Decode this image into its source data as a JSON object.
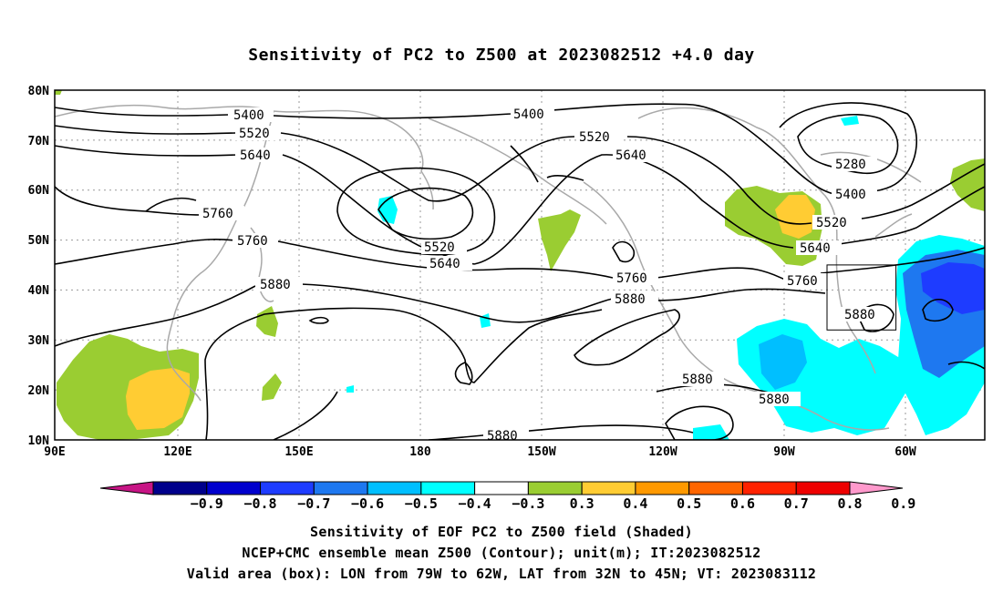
{
  "title": "Sensitivity of PC2 to Z500 at 2023082512 +4.0 day",
  "lat_labels": [
    "80N",
    "70N",
    "60N",
    "50N",
    "40N",
    "30N",
    "20N",
    "10N"
  ],
  "lon_labels": [
    "90E",
    "120E",
    "150E",
    "180",
    "150W",
    "120W",
    "90W",
    "60W"
  ],
  "contour_labels": {
    "c5400_a": "5400",
    "c5520_a": "5520",
    "c5640_a": "5640",
    "c5760_a": "5760",
    "c5760_b": "5760",
    "c5880_a": "5880",
    "c5400_b": "5400",
    "c5520_b": "5520",
    "c5640_b": "5640",
    "c5520_c": "5520",
    "c5640_c": "5640",
    "c5760_c": "5760",
    "c5880_b": "5880",
    "c5280": "5280",
    "c5400_c": "5400",
    "c5520_d": "5520",
    "c5640_d": "5640",
    "c5760_d": "5760",
    "c5880_c": "5880",
    "c5880_d": "5880",
    "c5880_e": "5880",
    "c5880_f": "5880"
  },
  "colorbar": {
    "labels": [
      "−0.9",
      "−0.8",
      "−0.7",
      "−0.6",
      "−0.5",
      "−0.4",
      "−0.3",
      "0.3",
      "0.4",
      "0.5",
      "0.6",
      "0.7",
      "0.8",
      "0.9"
    ],
    "colors": [
      "#c71585",
      "#00008b",
      "#0000cd",
      "#1e3cff",
      "#1e78f0",
      "#00bfff",
      "#00ffff",
      "#ffffff",
      "#9acd32",
      "#ffcc33",
      "#ff9900",
      "#ff6600",
      "#ff2200",
      "#ee0000",
      "#ff99cc"
    ]
  },
  "footer": {
    "line1": "Sensitivity of EOF PC2 to Z500 field (Shaded)",
    "line2": "NCEP+CMC ensemble mean Z500 (Contour); unit(m); IT:2023082512",
    "line3": "Valid area (box): LON from 79W to 62W, LAT from 32N to 45N; VT: 2023083112"
  }
}
